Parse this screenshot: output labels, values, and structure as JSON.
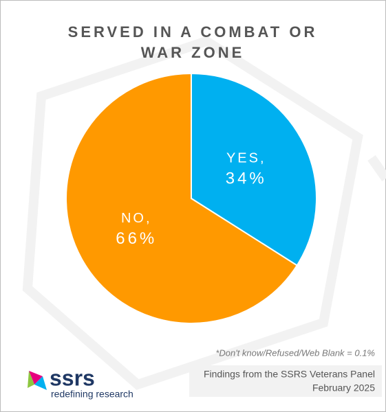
{
  "chart_data": {
    "type": "pie",
    "title": [
      "SERVED IN A COMBAT OR",
      "WAR ZONE"
    ],
    "categories": [
      "YES,",
      "NO,"
    ],
    "values": [
      34,
      66
    ],
    "value_labels": [
      "34%",
      "66%"
    ],
    "colors": [
      "#00b0f0",
      "#ff9900"
    ],
    "footnote": "*Don't know/Refused/Web Blank = 0.1%",
    "source": [
      "Findings from the SSRS Veterans Panel",
      "February 2025"
    ],
    "logo": {
      "name": "ssrs",
      "tagline": "redefining research"
    }
  }
}
